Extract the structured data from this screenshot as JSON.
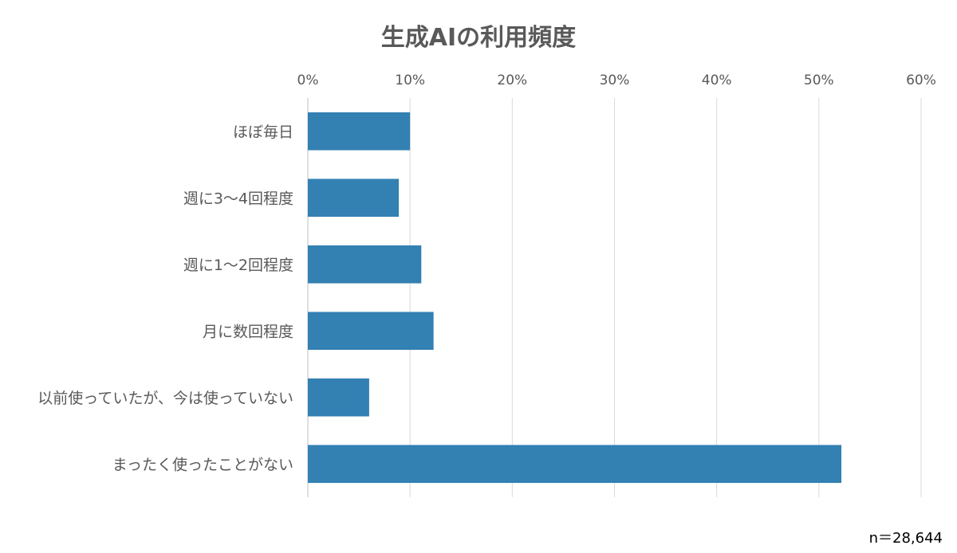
{
  "chart_data": {
    "type": "bar",
    "orientation": "horizontal",
    "title": "生成AIの利用頻度",
    "categories": [
      "ほぼ毎日",
      "週に3〜4回程度",
      "週に1〜2回程度",
      "月に数回程度",
      "以前使っていたが、今は使っていない",
      "まったく使ったことがない"
    ],
    "values": [
      10.0,
      8.9,
      11.1,
      12.3,
      6.0,
      52.2
    ],
    "xlim": [
      0,
      60
    ],
    "x_ticks": [
      "0%",
      "10%",
      "20%",
      "30%",
      "40%",
      "50%",
      "60%"
    ],
    "x_tick_values": [
      0,
      10,
      20,
      30,
      40,
      50,
      60
    ],
    "axis_position": "top",
    "grid": true,
    "legend": "none",
    "bar_color": "#3380b3",
    "note": "n＝28,644"
  }
}
